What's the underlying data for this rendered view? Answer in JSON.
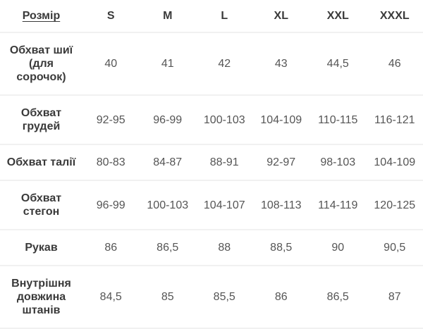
{
  "table": {
    "header": {
      "size_label": "Розмір",
      "columns": [
        "S",
        "M",
        "L",
        "XL",
        "XXL",
        "XXXL"
      ]
    },
    "rows": [
      {
        "label": "Обхват шиї\n(для\nсорочок)",
        "values": [
          "40",
          "41",
          "42",
          "43",
          "44,5",
          "46"
        ]
      },
      {
        "label": "Обхват\nгрудей",
        "values": [
          "92-95",
          "96-99",
          "100-103",
          "104-109",
          "110-115",
          "116-121"
        ]
      },
      {
        "label": "Обхват талії",
        "values": [
          "80-83",
          "84-87",
          "88-91",
          "92-97",
          "98-103",
          "104-109"
        ]
      },
      {
        "label": "Обхват\nстегон",
        "values": [
          "96-99",
          "100-103",
          "104-107",
          "108-113",
          "114-119",
          "120-125"
        ]
      },
      {
        "label": "Рукав",
        "values": [
          "86",
          "86,5",
          "88",
          "88,5",
          "90",
          "90,5"
        ]
      },
      {
        "label": "Внутрішня\nдовжина\nштанів",
        "values": [
          "84,5",
          "85",
          "85,5",
          "86",
          "86,5",
          "87"
        ]
      }
    ],
    "colors": {
      "header_text": "#3a3a3a",
      "label_text": "#3a3a3a",
      "value_text": "#555555",
      "divider": "#f1f1f1",
      "background": "#ffffff"
    }
  }
}
